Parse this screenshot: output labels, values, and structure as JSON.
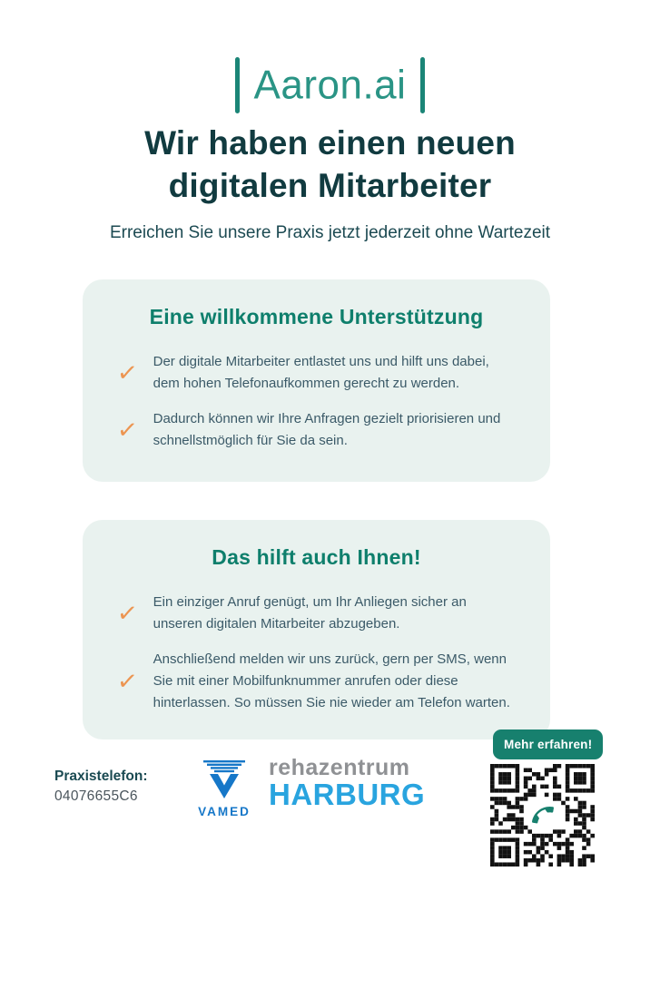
{
  "logo": {
    "text": "Aaron.ai"
  },
  "header": {
    "title_line1": "Wir haben einen neuen",
    "title_line2": "digitalen Mitarbeiter",
    "subtitle": "Erreichen Sie unsere Praxis jetzt jederzeit ohne Wartezeit"
  },
  "cards": [
    {
      "heading": "Eine willkommene Unterstützung",
      "bullets": [
        "Der digitale Mitarbeiter entlastet uns und hilft uns dabei, dem hohen Telefonaufkommen gerecht zu werden.",
        "Dadurch können wir Ihre Anfragen gezielt priorisieren und schnellstmöglich für Sie da sein."
      ]
    },
    {
      "heading": "Das hilft auch Ihnen!",
      "bullets": [
        "Ein einziger Anruf genügt, um Ihr Anliegen sicher an unseren digitalen Mitarbeiter abzugeben.",
        "Anschließend melden wir uns zurück, gern per SMS, wenn Sie mit einer Mobilfunknummer anrufen oder diese hinterlassen. So müssen Sie nie wieder am Telefon warten."
      ]
    }
  ],
  "checkmark_glyph": "✓",
  "footer": {
    "phone_label": "Praxistelefon:",
    "phone_number": "04076655C6",
    "vamed_logo_text": "VAMED",
    "clinic_line1": "rehazentrum",
    "clinic_line2": "HARBURG",
    "qr_badge_label": "Mehr erfahren!"
  },
  "colors": {
    "brand_teal": "#1B8577",
    "logo_text_teal": "#2A9485",
    "headline_dark_teal": "#113B40",
    "card_background": "#E9F2EF",
    "card_heading_green": "#0E7F6C",
    "body_text": "#3B5A68",
    "check_orange": "#EC9551",
    "badge_background": "#17806E",
    "vamed_blue": "#1677C8",
    "rehazentrum_gray": "#8F9194",
    "harburg_blue": "#29A4DF"
  }
}
